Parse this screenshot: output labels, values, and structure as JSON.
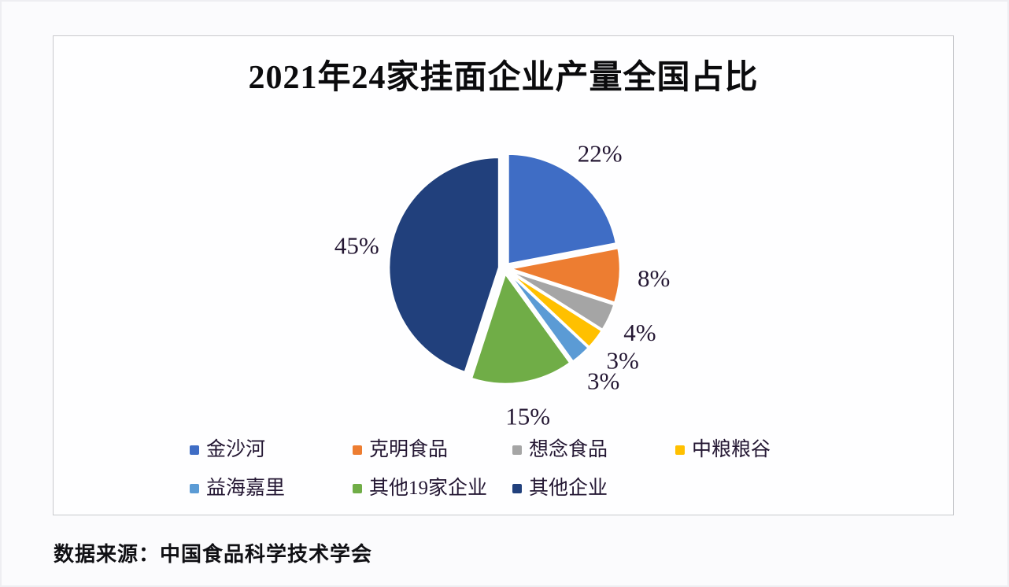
{
  "page": {
    "source_note": "数据来源：中国食品科学技术学会"
  },
  "chart_data": {
    "type": "pie",
    "title": "2021年24家挂面企业产量全国占比",
    "unit": "percent",
    "start_angle_deg": 0,
    "direction": "clockwise",
    "legend_position": "bottom",
    "label_style": "percent-outside",
    "series": [
      {
        "name": "金沙河",
        "value": 22,
        "label": "22%",
        "color": "#3F6DC5"
      },
      {
        "name": "克明食品",
        "value": 8,
        "label": "8%",
        "color": "#ED7D31"
      },
      {
        "name": "想念食品",
        "value": 4,
        "label": "4%",
        "color": "#A5A5A5"
      },
      {
        "name": "中粮粮谷",
        "value": 3,
        "label": "3%",
        "color": "#FFC000"
      },
      {
        "name": "益海嘉里",
        "value": 3,
        "label": "3%",
        "color": "#5B9BD5"
      },
      {
        "name": "其他19家企业",
        "value": 15,
        "label": "15%",
        "color": "#70AD47"
      },
      {
        "name": "其他企业",
        "value": 45,
        "label": "45%",
        "color": "#21407C"
      }
    ]
  }
}
